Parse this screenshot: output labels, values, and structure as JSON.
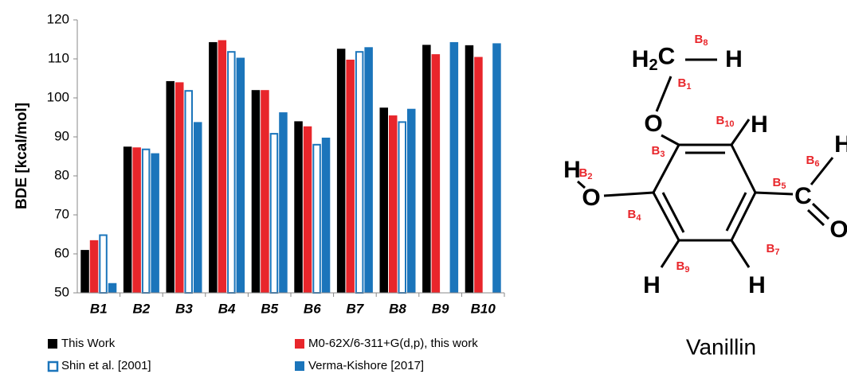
{
  "chart_data": {
    "type": "bar",
    "y_label": "BDE [kcal/mol]",
    "categories": [
      "B1",
      "B2",
      "B3",
      "B4",
      "B5",
      "B6",
      "B7",
      "B8",
      "B9",
      "B10"
    ],
    "series": [
      {
        "name": "This Work",
        "color": "#000000",
        "values": [
          61,
          87.5,
          104.3,
          114.3,
          102,
          94,
          112.6,
          97.5,
          113.6,
          113.5
        ]
      },
      {
        "name": "M0-62X/6-311+G(d,p), this work",
        "color": "#e8262b",
        "values": [
          63.5,
          87.3,
          104,
          114.8,
          102,
          92.7,
          109.8,
          95.5,
          111.2,
          110.5
        ]
      },
      {
        "name": "Shin et al. [2001]",
        "color": "#1b75bb",
        "style": "outline",
        "values": [
          65,
          87,
          102,
          112,
          91,
          88.2,
          112,
          94,
          null,
          null
        ]
      },
      {
        "name": "Verma-Kishore [2017]",
        "color": "#1b75bb",
        "values": [
          52.5,
          85.8,
          93.8,
          110.3,
          96.3,
          89.8,
          113,
          97.2,
          114.3,
          114
        ]
      }
    ],
    "ylim": [
      50,
      120
    ],
    "yticks": [
      50,
      60,
      70,
      80,
      90,
      100,
      110,
      120
    ],
    "grid": false
  },
  "diagram": {
    "title": "Vanillin",
    "atoms": [
      "H2C",
      "H",
      "O",
      "H",
      "H",
      "O",
      "C",
      "H",
      "O",
      "H",
      "H"
    ],
    "bonds": [
      "B1",
      "B2",
      "B3",
      "B4",
      "B5",
      "B6",
      "B7",
      "B8",
      "B9",
      "B10"
    ]
  }
}
